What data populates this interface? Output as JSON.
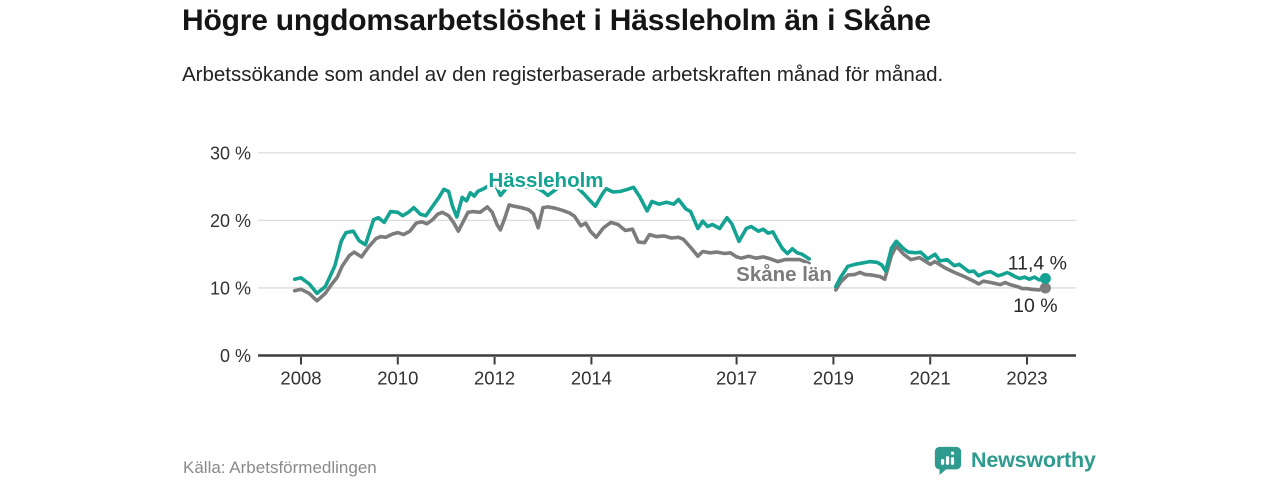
{
  "title": "Högre ungdomsarbetslöshet i Hässleholm än i Skåne",
  "subtitle": "Arbetssökande som andel av den registerbaserade arbetskraften månad för månad.",
  "source": "Källa: Arbetsförmedlingen",
  "branding": {
    "logo_text": "Newsworthy",
    "logo_icon": "newsworthy-bar-chart-bubble-icon",
    "logo_color": "#2F9B8F"
  },
  "colors": {
    "hassleholm_line": "#14A392",
    "skane_line": "#7C7C7C",
    "grid": "#DCDCDC",
    "axis": "#3D3D3D",
    "tick_text": "#333333",
    "value_label_text": "#2A2A2A",
    "background": "#FFFFFF"
  },
  "chart_data": {
    "type": "line",
    "title": "Högre ungdomsarbetslöshet i Hässleholm än i Skåne",
    "subtitle": "Arbetssökande som andel av den registerbaserade arbetskraften månad för månad.",
    "unit": "%",
    "grid": true,
    "legend_position": "inline-labels",
    "x_axis": {
      "ticks": [
        2008,
        2010,
        2012,
        2014,
        2017,
        2019,
        2021,
        2023
      ],
      "tick_labels": [
        "2008",
        "2010",
        "2012",
        "2014",
        "2017",
        "2019",
        "2021",
        "2023"
      ],
      "range": [
        2007.6,
        2024.0
      ]
    },
    "y_axis": {
      "ticks": [
        0,
        10,
        20,
        30
      ],
      "tick_labels": [
        "0 %",
        "10 %",
        "20 %",
        "30 %"
      ],
      "range": [
        0,
        31
      ]
    },
    "data_gap": {
      "from": 2018.5,
      "to": 2019.05
    },
    "series": [
      {
        "name": "Skåne län",
        "color": "#7C7C7C",
        "end_label": "10 %",
        "end_value": 10.0,
        "segments": [
          [
            [
              2007.87,
              9.6
            ],
            [
              2008.0,
              9.8
            ],
            [
              2008.17,
              9.2
            ],
            [
              2008.33,
              8.1
            ],
            [
              2008.5,
              9.2
            ],
            [
              2008.62,
              10.4
            ],
            [
              2008.75,
              11.6
            ],
            [
              2008.85,
              13.2
            ],
            [
              2009.0,
              14.8
            ],
            [
              2009.1,
              15.3
            ],
            [
              2009.25,
              14.6
            ],
            [
              2009.4,
              16.1
            ],
            [
              2009.55,
              17.3
            ],
            [
              2009.65,
              17.6
            ],
            [
              2009.75,
              17.5
            ],
            [
              2009.9,
              18.0
            ],
            [
              2010.0,
              18.2
            ],
            [
              2010.12,
              17.9
            ],
            [
              2010.25,
              18.4
            ],
            [
              2010.38,
              19.6
            ],
            [
              2010.5,
              19.8
            ],
            [
              2010.6,
              19.5
            ],
            [
              2010.72,
              20.1
            ],
            [
              2010.82,
              20.9
            ],
            [
              2010.92,
              21.2
            ],
            [
              2011.05,
              20.7
            ],
            [
              2011.15,
              19.7
            ],
            [
              2011.25,
              18.4
            ],
            [
              2011.35,
              19.8
            ],
            [
              2011.45,
              21.2
            ],
            [
              2011.55,
              21.3
            ],
            [
              2011.7,
              21.2
            ],
            [
              2011.85,
              22.0
            ],
            [
              2011.95,
              21.2
            ],
            [
              2012.05,
              19.4
            ],
            [
              2012.12,
              18.6
            ],
            [
              2012.22,
              20.5
            ],
            [
              2012.3,
              22.3
            ],
            [
              2012.4,
              22.1
            ],
            [
              2012.55,
              21.9
            ],
            [
              2012.7,
              21.6
            ],
            [
              2012.8,
              21.0
            ],
            [
              2012.9,
              18.9
            ],
            [
              2013.0,
              21.9
            ],
            [
              2013.1,
              22.0
            ],
            [
              2013.25,
              21.8
            ],
            [
              2013.4,
              21.5
            ],
            [
              2013.55,
              21.1
            ],
            [
              2013.65,
              20.6
            ],
            [
              2013.78,
              19.2
            ],
            [
              2013.88,
              19.6
            ],
            [
              2013.98,
              18.4
            ],
            [
              2014.1,
              17.5
            ],
            [
              2014.25,
              18.9
            ],
            [
              2014.4,
              19.7
            ],
            [
              2014.55,
              19.4
            ],
            [
              2014.7,
              18.5
            ],
            [
              2014.85,
              18.7
            ],
            [
              2014.97,
              16.8
            ],
            [
              2015.1,
              16.7
            ],
            [
              2015.2,
              17.9
            ],
            [
              2015.35,
              17.6
            ],
            [
              2015.5,
              17.7
            ],
            [
              2015.65,
              17.4
            ],
            [
              2015.8,
              17.5
            ],
            [
              2015.9,
              17.2
            ],
            [
              2016.05,
              16.0
            ],
            [
              2016.2,
              14.7
            ],
            [
              2016.3,
              15.4
            ],
            [
              2016.45,
              15.2
            ],
            [
              2016.6,
              15.3
            ],
            [
              2016.75,
              15.1
            ],
            [
              2016.87,
              15.2
            ],
            [
              2017.0,
              14.6
            ],
            [
              2017.1,
              14.4
            ],
            [
              2017.25,
              14.7
            ],
            [
              2017.4,
              14.4
            ],
            [
              2017.55,
              14.6
            ],
            [
              2017.7,
              14.3
            ],
            [
              2017.85,
              13.9
            ],
            [
              2018.0,
              14.2
            ],
            [
              2018.15,
              14.2
            ],
            [
              2018.3,
              14.2
            ],
            [
              2018.45,
              13.8
            ],
            [
              2018.5,
              13.6
            ]
          ],
          [
            [
              2019.05,
              9.7
            ],
            [
              2019.15,
              10.9
            ],
            [
              2019.3,
              11.9
            ],
            [
              2019.45,
              12.0
            ],
            [
              2019.55,
              12.3
            ],
            [
              2019.65,
              12.0
            ],
            [
              2019.8,
              11.9
            ],
            [
              2019.96,
              11.7
            ],
            [
              2020.06,
              11.3
            ],
            [
              2020.2,
              14.8
            ],
            [
              2020.3,
              16.2
            ],
            [
              2020.45,
              15.0
            ],
            [
              2020.6,
              14.2
            ],
            [
              2020.78,
              14.5
            ],
            [
              2021.0,
              13.5
            ],
            [
              2021.1,
              13.9
            ],
            [
              2021.3,
              13.0
            ],
            [
              2021.5,
              12.3
            ],
            [
              2021.7,
              11.7
            ],
            [
              2021.9,
              11.0
            ],
            [
              2022.0,
              10.6
            ],
            [
              2022.1,
              11.0
            ],
            [
              2022.25,
              10.8
            ],
            [
              2022.45,
              10.5
            ],
            [
              2022.55,
              10.8
            ],
            [
              2022.65,
              10.5
            ],
            [
              2022.8,
              10.2
            ],
            [
              2022.9,
              9.9
            ],
            [
              2023.0,
              9.9
            ],
            [
              2023.1,
              9.8
            ],
            [
              2023.25,
              9.7
            ],
            [
              2023.38,
              10.0
            ]
          ]
        ]
      },
      {
        "name": "Hässleholm",
        "color": "#14A392",
        "end_label": "11,4 %",
        "end_value": 11.4,
        "segments": [
          [
            [
              2007.87,
              11.3
            ],
            [
              2008.0,
              11.5
            ],
            [
              2008.17,
              10.6
            ],
            [
              2008.33,
              9.2
            ],
            [
              2008.5,
              10.2
            ],
            [
              2008.58,
              11.4
            ],
            [
              2008.7,
              13.3
            ],
            [
              2008.83,
              16.9
            ],
            [
              2008.93,
              18.2
            ],
            [
              2009.08,
              18.4
            ],
            [
              2009.2,
              17.0
            ],
            [
              2009.33,
              16.4
            ],
            [
              2009.5,
              20.1
            ],
            [
              2009.6,
              20.4
            ],
            [
              2009.72,
              19.7
            ],
            [
              2009.85,
              21.3
            ],
            [
              2010.0,
              21.2
            ],
            [
              2010.1,
              20.7
            ],
            [
              2010.22,
              21.2
            ],
            [
              2010.33,
              21.9
            ],
            [
              2010.47,
              20.9
            ],
            [
              2010.58,
              20.7
            ],
            [
              2010.7,
              21.9
            ],
            [
              2010.85,
              23.4
            ],
            [
              2010.95,
              24.6
            ],
            [
              2011.05,
              24.3
            ],
            [
              2011.13,
              22.1
            ],
            [
              2011.22,
              20.5
            ],
            [
              2011.33,
              23.4
            ],
            [
              2011.42,
              22.9
            ],
            [
              2011.5,
              24.1
            ],
            [
              2011.58,
              23.6
            ],
            [
              2011.65,
              24.3
            ],
            [
              2011.75,
              24.6
            ],
            [
              2011.85,
              25.0
            ],
            [
              2011.95,
              25.3
            ],
            [
              2012.05,
              24.8
            ],
            [
              2012.12,
              23.7
            ],
            [
              2012.25,
              24.8
            ],
            [
              2012.35,
              25.3
            ],
            [
              2012.45,
              25.6
            ],
            [
              2012.55,
              25.2
            ],
            [
              2012.65,
              24.9
            ],
            [
              2012.78,
              25.1
            ],
            [
              2012.9,
              24.7
            ],
            [
              2013.0,
              24.3
            ],
            [
              2013.1,
              23.7
            ],
            [
              2013.25,
              24.5
            ],
            [
              2013.4,
              25.2
            ],
            [
              2013.5,
              25.5
            ],
            [
              2013.6,
              25.1
            ],
            [
              2013.72,
              24.8
            ],
            [
              2013.85,
              23.9
            ],
            [
              2013.95,
              23.1
            ],
            [
              2014.08,
              22.1
            ],
            [
              2014.2,
              23.6
            ],
            [
              2014.3,
              24.7
            ],
            [
              2014.45,
              24.2
            ],
            [
              2014.6,
              24.3
            ],
            [
              2014.75,
              24.6
            ],
            [
              2014.87,
              24.9
            ],
            [
              2015.0,
              23.5
            ],
            [
              2015.15,
              21.4
            ],
            [
              2015.25,
              22.8
            ],
            [
              2015.4,
              22.4
            ],
            [
              2015.55,
              22.7
            ],
            [
              2015.7,
              22.4
            ],
            [
              2015.8,
              23.1
            ],
            [
              2015.95,
              21.7
            ],
            [
              2016.05,
              21.3
            ],
            [
              2016.2,
              18.8
            ],
            [
              2016.3,
              19.9
            ],
            [
              2016.4,
              19.1
            ],
            [
              2016.5,
              19.4
            ],
            [
              2016.65,
              18.8
            ],
            [
              2016.8,
              20.4
            ],
            [
              2016.9,
              19.5
            ],
            [
              2017.05,
              16.9
            ],
            [
              2017.2,
              18.8
            ],
            [
              2017.3,
              19.1
            ],
            [
              2017.45,
              18.4
            ],
            [
              2017.55,
              18.7
            ],
            [
              2017.65,
              18.1
            ],
            [
              2017.75,
              18.3
            ],
            [
              2017.85,
              17.0
            ],
            [
              2017.95,
              15.8
            ],
            [
              2018.05,
              15.1
            ],
            [
              2018.15,
              15.8
            ],
            [
              2018.25,
              15.2
            ],
            [
              2018.35,
              15.0
            ],
            [
              2018.5,
              14.3
            ]
          ],
          [
            [
              2019.05,
              10.2
            ],
            [
              2019.15,
              11.6
            ],
            [
              2019.3,
              13.2
            ],
            [
              2019.45,
              13.5
            ],
            [
              2019.6,
              13.7
            ],
            [
              2019.75,
              13.9
            ],
            [
              2019.9,
              13.8
            ],
            [
              2020.0,
              13.4
            ],
            [
              2020.08,
              12.5
            ],
            [
              2020.2,
              15.9
            ],
            [
              2020.3,
              16.9
            ],
            [
              2020.45,
              15.8
            ],
            [
              2020.55,
              15.3
            ],
            [
              2020.7,
              15.2
            ],
            [
              2020.8,
              15.3
            ],
            [
              2020.95,
              14.3
            ],
            [
              2021.1,
              15.0
            ],
            [
              2021.2,
              14.0
            ],
            [
              2021.35,
              14.2
            ],
            [
              2021.5,
              13.3
            ],
            [
              2021.6,
              13.5
            ],
            [
              2021.8,
              12.4
            ],
            [
              2021.9,
              12.5
            ],
            [
              2022.0,
              11.8
            ],
            [
              2022.15,
              12.3
            ],
            [
              2022.25,
              12.4
            ],
            [
              2022.4,
              11.8
            ],
            [
              2022.5,
              12.0
            ],
            [
              2022.6,
              12.3
            ],
            [
              2022.75,
              11.7
            ],
            [
              2022.85,
              11.4
            ],
            [
              2022.95,
              11.6
            ],
            [
              2023.05,
              11.3
            ],
            [
              2023.15,
              11.6
            ],
            [
              2023.25,
              11.2
            ],
            [
              2023.38,
              11.4
            ]
          ]
        ]
      }
    ]
  }
}
